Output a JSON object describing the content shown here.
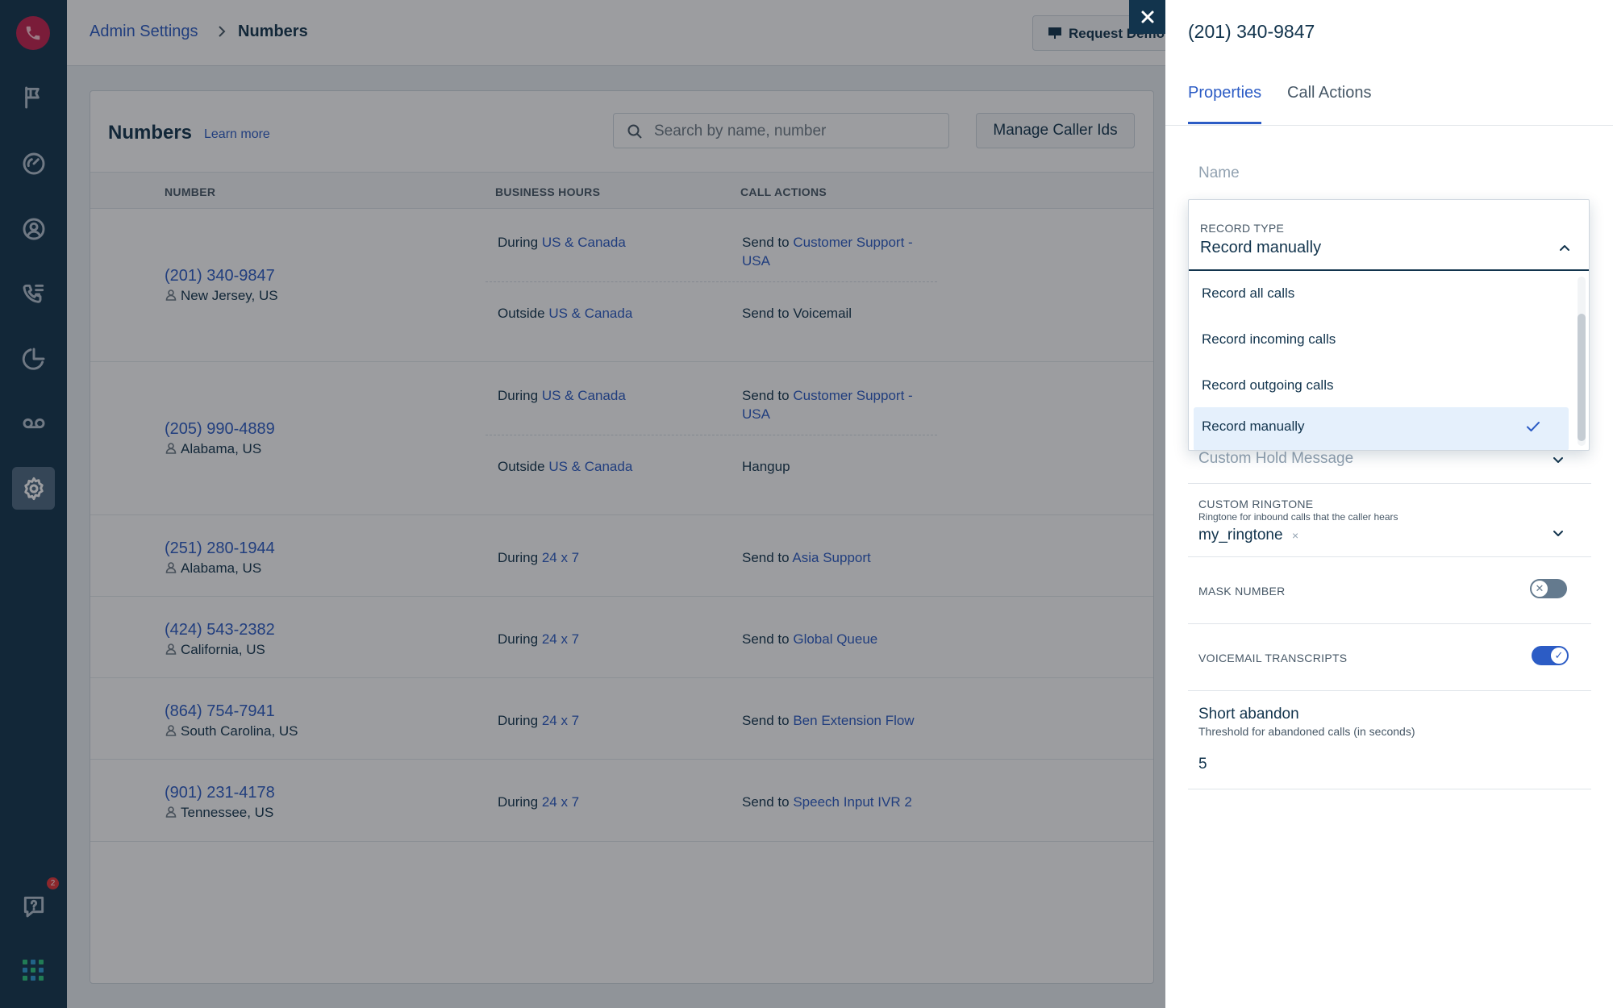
{
  "breadcrumb": {
    "parent": "Admin Settings",
    "current": "Numbers"
  },
  "header": {
    "request_demo_label": "Request Demo"
  },
  "numbers_card": {
    "title": "Numbers",
    "learn_more": "Learn more",
    "search_placeholder": "Search by name, number",
    "manage_caller_ids_label": "Manage Caller Ids",
    "columns": [
      "NUMBER",
      "BUSINESS HOURS",
      "CALL ACTIONS"
    ]
  },
  "rows": [
    {
      "number": "(201) 340-9847",
      "location": "New Jersey, US",
      "rules": [
        {
          "when": "During",
          "hours": "US & Canada",
          "prefix": "Send to",
          "target": "Customer Support - USA",
          "target_line1": "Customer Support -",
          "target_line2": "USA"
        },
        {
          "when": "Outside",
          "hours": "US & Canada",
          "action": "Send to Voicemail"
        }
      ]
    },
    {
      "number": "(205) 990-4889",
      "location": "Alabama, US",
      "rules": [
        {
          "when": "During",
          "hours": "US & Canada",
          "prefix": "Send to",
          "target": "Customer Support - USA",
          "target_line1": "Customer Support -",
          "target_line2": "USA"
        },
        {
          "when": "Outside",
          "hours": "US & Canada",
          "action": "Hangup"
        }
      ]
    },
    {
      "number": "(251) 280-1944",
      "location": "Alabama, US",
      "rules": [
        {
          "when": "During",
          "hours": "24 x 7",
          "prefix": "Send to",
          "target": "Asia Support"
        }
      ]
    },
    {
      "number": "(424) 543-2382",
      "location": "California, US",
      "rules": [
        {
          "when": "During",
          "hours": "24 x 7",
          "prefix": "Send to",
          "target": "Global Queue"
        }
      ]
    },
    {
      "number": "(864) 754-7941",
      "location": "South Carolina, US",
      "rules": [
        {
          "when": "During",
          "hours": "24 x 7",
          "prefix": "Send to",
          "target": "Ben Extension Flow"
        }
      ]
    },
    {
      "number": "(901) 231-4178",
      "location": "Tennessee, US",
      "rules": [
        {
          "when": "During",
          "hours": "24 x 7",
          "prefix": "Send to",
          "target": "Speech Input IVR 2"
        }
      ]
    }
  ],
  "panel": {
    "title": "(201) 340-9847",
    "tabs": [
      "Properties",
      "Call Actions"
    ],
    "active_tab": "Properties",
    "name_placeholder": "Name",
    "record_type": {
      "label": "RECORD TYPE",
      "value": "Record manually",
      "options": [
        "Record all calls",
        "Record incoming calls",
        "Record outgoing calls",
        "Record manually"
      ],
      "selected": "Record manually"
    },
    "custom_hold_message": "Custom Hold Message",
    "custom_ringtone": {
      "label": "CUSTOM RINGTONE",
      "sublabel": "Ringtone for inbound calls that the caller hears",
      "value": "my_ringtone",
      "clear": "×"
    },
    "mask_number": {
      "label": "MASK NUMBER",
      "enabled": false,
      "knob": "✕"
    },
    "voicemail_transcripts": {
      "label": "VOICEMAIL TRANSCRIPTS",
      "enabled": true,
      "knob": "✓"
    },
    "short_abandon": {
      "title": "Short abandon",
      "sublabel": "Threshold for abandoned calls (in seconds)",
      "value": "5"
    }
  },
  "rail": {
    "icons": [
      "phone-logo-icon",
      "flag-icon",
      "dashboard-gauge-icon",
      "contact-icon",
      "call-routing-icon",
      "reports-pie-icon",
      "voicemail-icon",
      "settings-gear-icon",
      "help-icon",
      "apps-grid-icon"
    ],
    "help_badge": "2",
    "apps_colors": [
      "#2bc77f",
      "#2c9bd4",
      "#2bc77f",
      "#2c9bd4",
      "#2bc77f",
      "#2c9bd4",
      "#2bc77f",
      "#2c9bd4",
      "#2bc77f"
    ]
  },
  "colors": {
    "rail_bg": "#12344d",
    "link": "#2c5cc5",
    "brand": "#c4214f",
    "selected_option_bg": "#e5f0fc"
  }
}
